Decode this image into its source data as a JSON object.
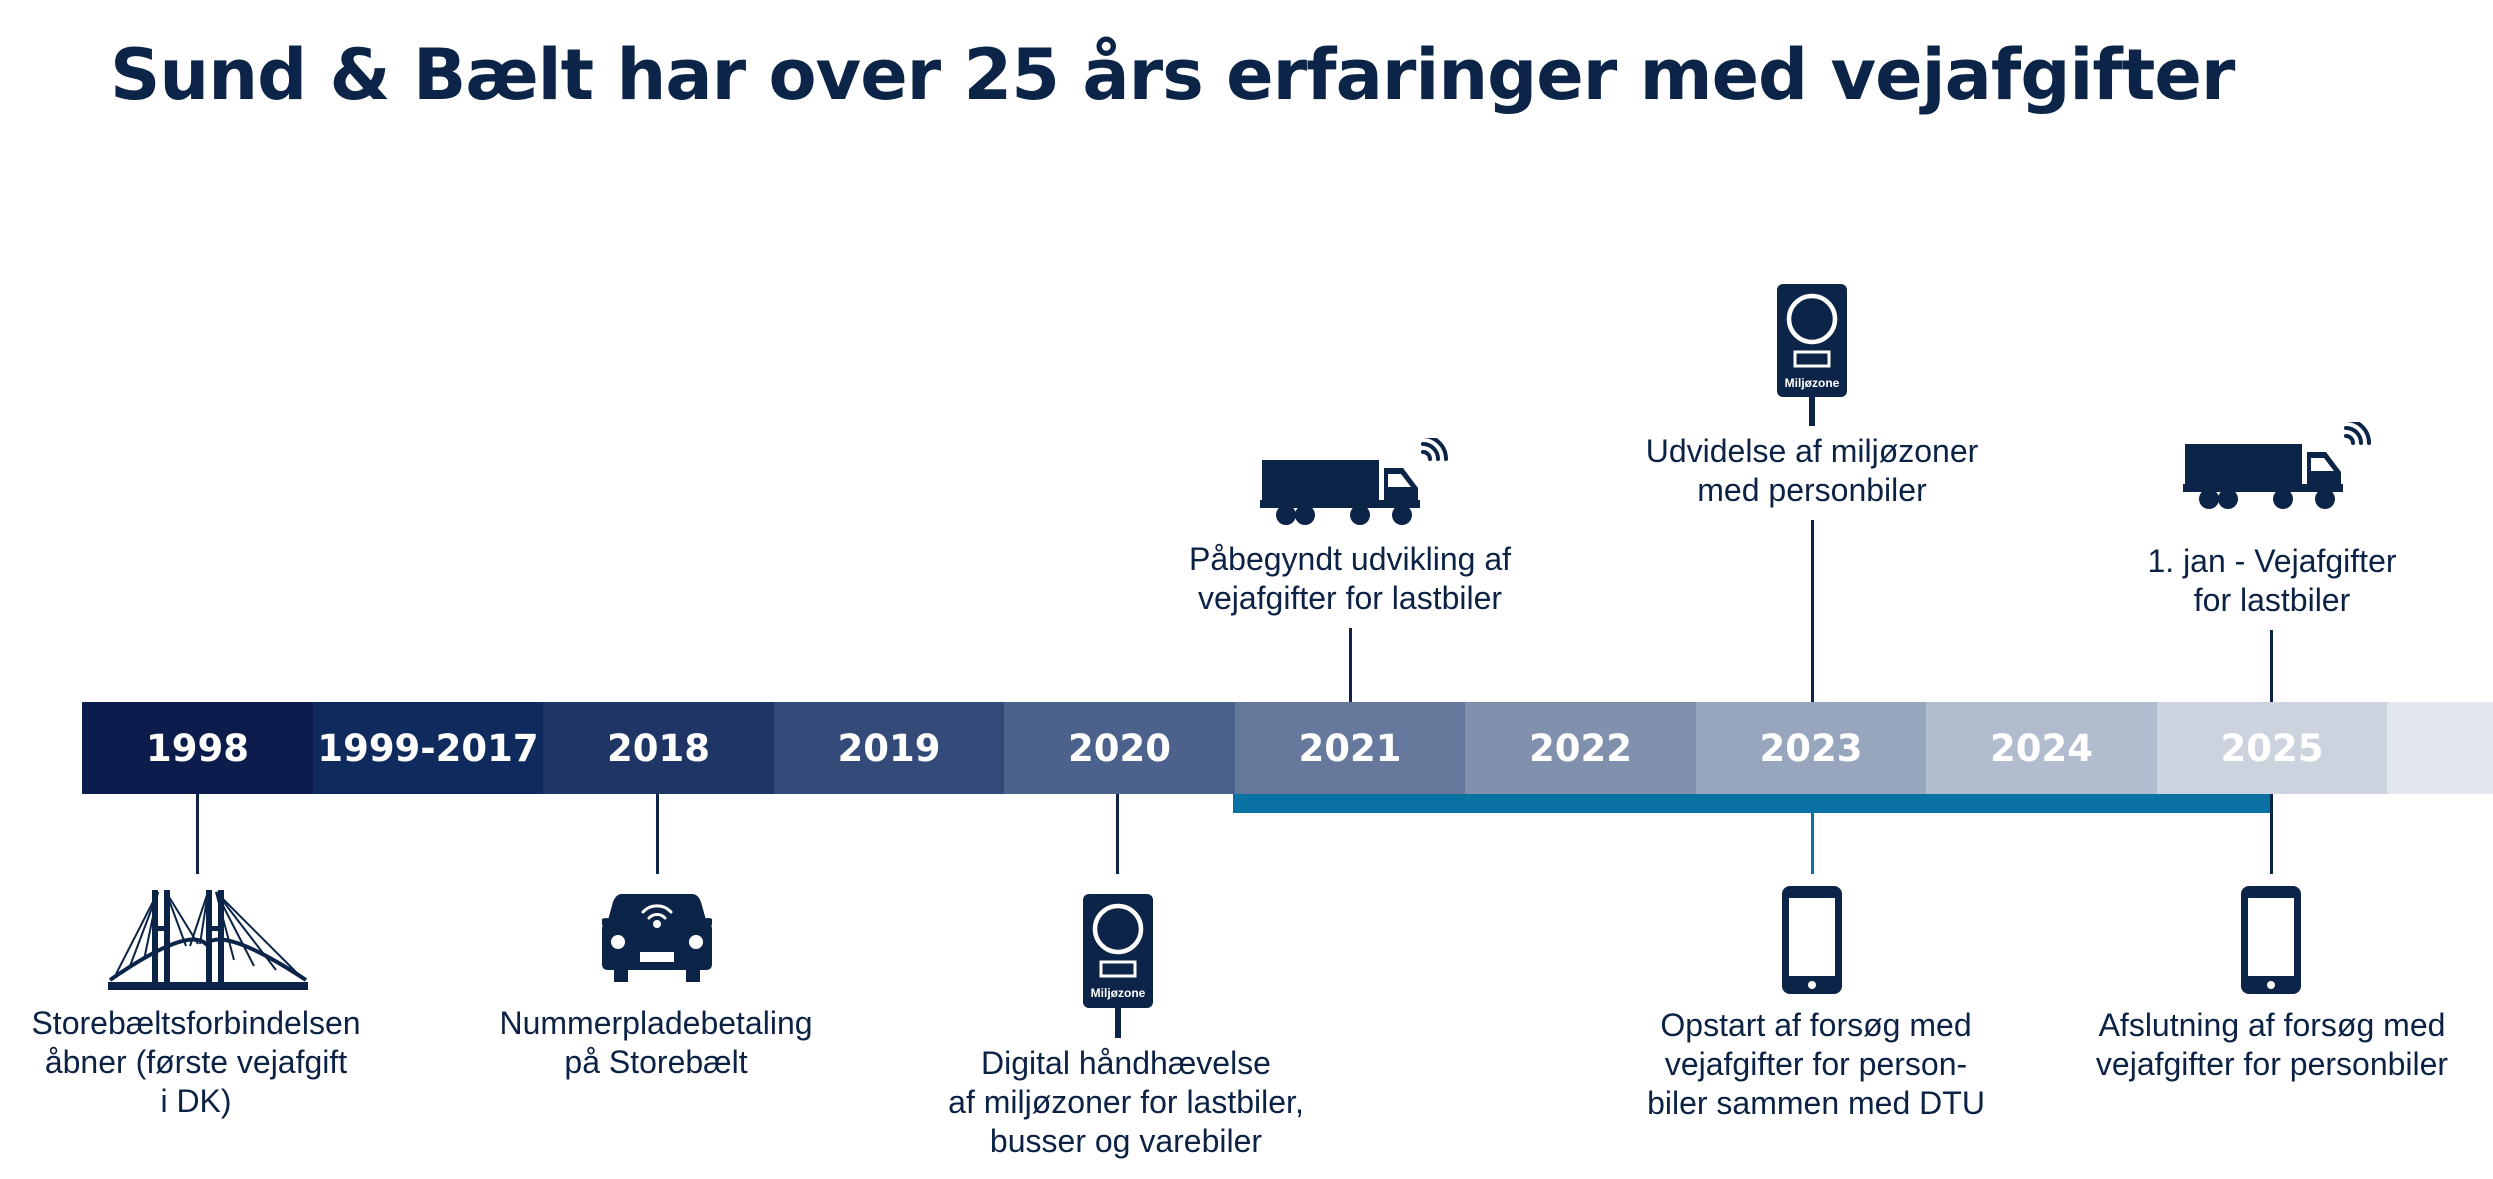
{
  "title": "Sund & Bælt har over 25 års erfaringer med vejafgifter",
  "colors": {
    "title": "#0b2447",
    "icon": "#0b2447",
    "span_line": "#0a72a3",
    "segments": [
      "#0c1d4d",
      "#0f2a5d",
      "#1e3566",
      "#344a78",
      "#4c628d",
      "#66799c",
      "#8090ad",
      "#97a5bd",
      "#b2bccf",
      "#cdd3de",
      "#e3e6ec"
    ]
  },
  "timeline": {
    "segments": [
      "1998",
      "1999-2017",
      "2018",
      "2019",
      "2020",
      "2021",
      "2022",
      "2023",
      "2024",
      "2025",
      ""
    ]
  },
  "events_above": [
    {
      "year": "2021",
      "text": "Påbegyndt udvikling af\nvejafgifter for lastbiler",
      "icon": "truck-icon"
    },
    {
      "year": "2023",
      "text": "Udvidelse af miljøzoner\nmed personbiler",
      "icon": "miljozone-sign-icon"
    },
    {
      "year": "2025",
      "text": "1. jan - Vejafgifter\nfor lastbiler",
      "icon": "truck-icon"
    }
  ],
  "events_below": [
    {
      "year": "1998",
      "text": "Storebæltsforbindelsen\nåbner (første vejafgift\ni DK)",
      "icon": "bridge-icon"
    },
    {
      "year": "2018",
      "text": "Nummerpladebetaling\npå Storebælt",
      "icon": "car-icon"
    },
    {
      "year": "2020",
      "text": "Digital håndhævelse\naf miljøzoner for lastbiler,\nbusser og varebiler",
      "icon": "miljozone-sign-icon"
    },
    {
      "year": "2023",
      "text": "Opstart af forsøg med\nvejafgifter for person-\nbiler sammen med DTU",
      "icon": "smartphone-icon"
    },
    {
      "year": "2025",
      "text": "Afslutning af forsøg med\nvejafgifter for personbiler",
      "icon": "smartphone-icon"
    }
  ],
  "sign_label": "Miljøzone"
}
